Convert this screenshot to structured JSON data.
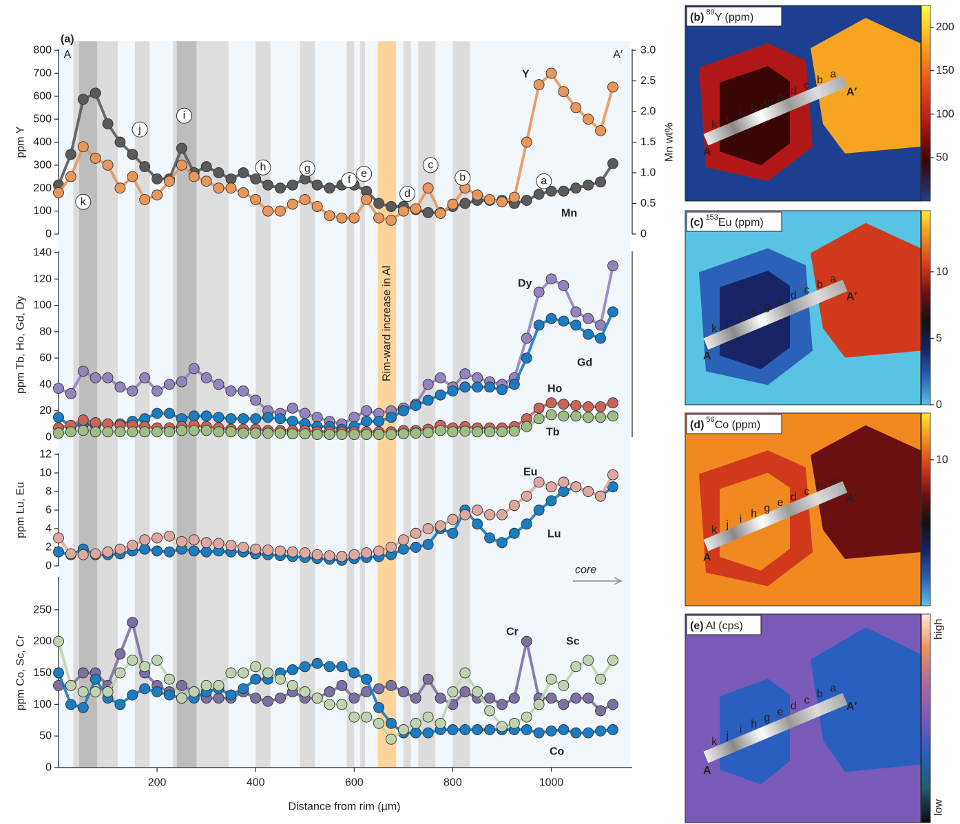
{
  "chart_data": {
    "type": "line",
    "title": "(a)",
    "xlabel": "Distance from rim (µm)",
    "xlim": [
      0,
      1160
    ],
    "xticks": [
      200,
      400,
      600,
      800,
      1000
    ],
    "core_label": "core",
    "x": [
      0,
      25,
      50,
      75,
      100,
      125,
      150,
      175,
      200,
      225,
      250,
      275,
      300,
      325,
      350,
      375,
      400,
      425,
      450,
      475,
      500,
      525,
      550,
      575,
      600,
      625,
      650,
      675,
      700,
      725,
      750,
      775,
      800,
      825,
      850,
      875,
      900,
      925,
      950,
      975,
      1000,
      1025,
      1050,
      1075,
      1100,
      1125
    ],
    "shaded_zones": [
      {
        "x0": 30,
        "x1": 120,
        "color": "#dcdcdc"
      },
      {
        "x0": 42,
        "x1": 78,
        "color": "#bdbdbd"
      },
      {
        "x0": 155,
        "x1": 185,
        "color": "#dcdcdc"
      },
      {
        "x0": 232,
        "x1": 345,
        "color": "#dedede"
      },
      {
        "x0": 240,
        "x1": 280,
        "color": "#bdbdbd"
      },
      {
        "x0": 400,
        "x1": 430,
        "color": "#dcdcdc"
      },
      {
        "x0": 490,
        "x1": 520,
        "color": "#dcdcdc"
      },
      {
        "x0": 585,
        "x1": 600,
        "color": "#dcdcdc"
      },
      {
        "x0": 612,
        "x1": 622,
        "color": "#dcdcdc"
      },
      {
        "x0": 700,
        "x1": 715,
        "color": "#dcdcdc"
      },
      {
        "x0": 730,
        "x1": 765,
        "color": "#dcdcdc"
      },
      {
        "x0": 800,
        "x1": 835,
        "color": "#dcdcdc"
      },
      {
        "x0": 648,
        "x1": 685,
        "color": "#fdd59a",
        "label": "Rim-ward increase in Al"
      }
    ],
    "subplots": [
      {
        "ylabel": "ppm Y",
        "ylim": [
          0,
          800
        ],
        "yticks": [
          0,
          100,
          200,
          300,
          400,
          500,
          600,
          700,
          800
        ],
        "y2label": "Mn wt%",
        "y2lim": [
          0,
          3
        ],
        "y2ticks": [
          0,
          0.5,
          {
            "value": 1,
            "label": "1.0"
          },
          1.5,
          {
            "value": 2,
            "label": "2.0"
          },
          2.5,
          {
            "value": 3,
            "label": "3.0"
          }
        ],
        "annotations": [
          {
            "text": "A",
            "x": 18,
            "y": 780,
            "circled": false
          },
          {
            "text": "A′",
            "x": 1135,
            "y": 780,
            "circled": false
          },
          {
            "text": "a",
            "x": 985,
            "y": 230,
            "circled": true
          },
          {
            "text": "b",
            "x": 820,
            "y": 245,
            "circled": true
          },
          {
            "text": "c",
            "x": 755,
            "y": 300,
            "circled": true
          },
          {
            "text": "d",
            "x": 708,
            "y": 175,
            "circled": true
          },
          {
            "text": "e",
            "x": 620,
            "y": 262,
            "circled": true
          },
          {
            "text": "f",
            "x": 590,
            "y": 235,
            "circled": true
          },
          {
            "text": "g",
            "x": 505,
            "y": 285,
            "circled": true
          },
          {
            "text": "h",
            "x": 415,
            "y": 290,
            "circled": true
          },
          {
            "text": "i",
            "x": 255,
            "y": 515,
            "circled": true
          },
          {
            "text": "j",
            "x": 165,
            "y": 455,
            "circled": true
          },
          {
            "text": "k",
            "x": 50,
            "y": 140,
            "circled": true
          }
        ],
        "series": [
          {
            "name": "Mn",
            "color": "#5a5a5a",
            "axis": "y2",
            "values": [
              0.8,
              1.3,
              2.2,
              2.3,
              1.8,
              1.5,
              1.3,
              1.1,
              0.9,
              0.9,
              1.4,
              1.0,
              1.1,
              1.0,
              0.9,
              1.0,
              0.9,
              0.8,
              0.75,
              0.8,
              0.9,
              0.8,
              0.75,
              0.8,
              0.8,
              0.7,
              0.5,
              0.45,
              0.45,
              0.4,
              0.35,
              0.35,
              0.45,
              0.5,
              0.55,
              0.55,
              0.55,
              0.5,
              0.55,
              0.65,
              0.7,
              0.7,
              0.75,
              0.8,
              0.85,
              1.15
            ]
          },
          {
            "name": "Y",
            "color": "#e8965a",
            "values": [
              180,
              250,
              380,
              330,
              300,
              200,
              250,
              150,
              170,
              230,
              300,
              250,
              230,
              200,
              200,
              180,
              150,
              100,
              100,
              130,
              150,
              120,
              80,
              70,
              70,
              150,
              70,
              60,
              100,
              110,
              200,
              90,
              130,
              200,
              170,
              150,
              140,
              160,
              400,
              650,
              700,
              620,
              550,
              500,
              450,
              640
            ]
          }
        ]
      },
      {
        "ylabel": "ppm Tb, Ho, Gd, Dy",
        "ylim": [
          0,
          140
        ],
        "yticks": [
          0,
          20,
          40,
          60,
          80,
          100,
          120,
          140
        ],
        "series": [
          {
            "name": "Dy",
            "color": "#9583bf",
            "values": [
              37,
              33,
              50,
              45,
              45,
              38,
              35,
              45,
              35,
              40,
              42,
              52,
              45,
              40,
              35,
              35,
              28,
              20,
              18,
              22,
              18,
              15,
              12,
              10,
              15,
              20,
              18,
              20,
              22,
              25,
              40,
              45,
              38,
              48,
              45,
              42,
              40,
              45,
              75,
              110,
              120,
              115,
              95,
              90,
              85,
              130
            ]
          },
          {
            "name": "Gd",
            "color": "#1b7cc1",
            "values": [
              15,
              8,
              10,
              9,
              10,
              10,
              12,
              14,
              18,
              18,
              14,
              16,
              16,
              15,
              14,
              14,
              14,
              15,
              14,
              12,
              10,
              8,
              8,
              6,
              8,
              12,
              12,
              15,
              20,
              24,
              28,
              32,
              35,
              38,
              38,
              38,
              36,
              40,
              60,
              85,
              90,
              88,
              85,
              78,
              75,
              95
            ]
          },
          {
            "name": "Ho",
            "color": "#c8645a",
            "values": [
              7,
              9,
              13,
              11,
              10,
              9,
              9,
              8,
              7,
              7,
              8,
              9,
              8,
              7,
              6,
              6,
              6,
              5,
              5,
              5,
              5,
              4,
              4,
              4,
              4,
              4,
              4,
              4,
              5,
              5,
              6,
              9,
              7,
              8,
              7,
              7,
              7,
              8,
              14,
              22,
              26,
              25,
              24,
              23,
              23,
              26
            ]
          },
          {
            "name": "Tb",
            "color": "#9cbd83",
            "values": [
              3,
              4,
              5,
              4,
              4,
              4,
              4,
              4,
              4,
              4,
              5,
              5,
              5,
              4,
              4,
              3,
              3,
              3,
              3,
              2.5,
              2.5,
              2,
              2,
              2,
              2,
              2,
              2,
              2,
              2.5,
              3,
              3.5,
              5,
              4,
              4.5,
              4,
              4,
              4,
              4.5,
              8,
              14,
              17,
              16,
              16,
              15,
              15,
              16
            ]
          }
        ]
      },
      {
        "ylabel": "ppm Lu, Eu",
        "ylim": [
          0,
          12
        ],
        "yticks": [
          0,
          2,
          4,
          6,
          8,
          10,
          12
        ],
        "series": [
          {
            "name": "Lu",
            "color": "#1b7cc1",
            "values": [
              1.5,
              1.2,
              1.8,
              1.2,
              1.2,
              1.3,
              1.6,
              1.8,
              1.6,
              1.5,
              1.8,
              1.6,
              1.5,
              1.6,
              1.5,
              1.5,
              1.3,
              1.2,
              1.1,
              1.0,
              0.9,
              0.8,
              0.7,
              0.6,
              0.8,
              0.9,
              1.0,
              1.2,
              1.8,
              2.0,
              2.3,
              4.0,
              3.5,
              6.0,
              4.5,
              3.0,
              2.5,
              3.5,
              4.5,
              6.0,
              7.0,
              8.0,
              8.5,
              8.0,
              7.5,
              8.5
            ]
          },
          {
            "name": "Eu",
            "color": "#dca8a0",
            "values": [
              3,
              1.3,
              1.2,
              1.3,
              1.5,
              1.8,
              2.2,
              2.8,
              3,
              3.2,
              2.6,
              2.8,
              2.5,
              2.4,
              2.2,
              2,
              1.8,
              1.7,
              1.6,
              1.5,
              1.4,
              1.2,
              1.1,
              1.0,
              1.2,
              1.4,
              1.6,
              2.0,
              2.8,
              3.5,
              4.0,
              4.3,
              5.0,
              5.5,
              6.0,
              5.5,
              5.5,
              6.5,
              7.5,
              9.0,
              8.5,
              9.0,
              8.5,
              8.0,
              7.5,
              9.8
            ]
          }
        ]
      },
      {
        "ylabel": "ppm Co, Sc, Cr",
        "ylim": [
          0,
          300
        ],
        "yticks": [
          0,
          50,
          100,
          150,
          200,
          250
        ],
        "series": [
          {
            "name": "Cr",
            "color": "#7d70a3",
            "values": [
              130,
              130,
              150,
              150,
              130,
              180,
              230,
              150,
              130,
              120,
              130,
              120,
              110,
              110,
              110,
              120,
              110,
              105,
              110,
              120,
              110,
              110,
              120,
              130,
              110,
              120,
              125,
              130,
              120,
              110,
              140,
              110,
              100,
              120,
              110,
              110,
              100,
              110,
              200,
              110,
              110,
              100,
              110,
              110,
              90,
              100
            ]
          },
          {
            "name": "Co",
            "color": "#1b7cc1",
            "values": [
              150,
              100,
              95,
              140,
              110,
              100,
              115,
              125,
              120,
              115,
              110,
              110,
              120,
              125,
              115,
              125,
              140,
              140,
              150,
              155,
              160,
              165,
              160,
              160,
              150,
              140,
              95,
              70,
              55,
              55,
              55,
              60,
              60,
              60,
              60,
              60,
              60,
              60,
              60,
              55,
              58,
              60,
              55,
              55,
              58,
              60
            ]
          },
          {
            "name": "Sc",
            "color": "#c0d3b0",
            "values": [
              200,
              130,
              120,
              120,
              120,
              150,
              170,
              160,
              170,
              140,
              110,
              120,
              130,
              130,
              150,
              150,
              160,
              150,
              140,
              130,
              120,
              110,
              100,
              100,
              80,
              80,
              70,
              45,
              60,
              70,
              80,
              70,
              120,
              150,
              120,
              90,
              65,
              70,
              80,
              100,
              140,
              130,
              160,
              170,
              140,
              170
            ]
          }
        ]
      }
    ]
  },
  "image_panels": {
    "track_letters": [
      "k",
      "j",
      "i",
      "h",
      "g",
      "e",
      "d",
      "c",
      "b",
      "a"
    ],
    "track_ends": [
      "A",
      "A′"
    ],
    "panels": [
      {
        "label": "(b)",
        "isotope": "89",
        "element": "Y (ppm)",
        "clim": [
          0,
          225
        ],
        "cticks": [
          50,
          100,
          150,
          200
        ],
        "colormap": [
          "#1d3f8f",
          "#3a0505",
          "#b01818",
          "#e8501a",
          "#f7a520",
          "#ffff40"
        ]
      },
      {
        "label": "(c)",
        "isotope": "153",
        "element": "Eu (ppm)",
        "clim": [
          0,
          14.6
        ],
        "cticks": [
          0,
          5,
          10
        ],
        "colormap": [
          "#58c3e3",
          "#2b62b8",
          "#182466",
          "#111111",
          "#6b1010",
          "#d03a1a",
          "#f08a20",
          "#ffe830"
        ]
      },
      {
        "label": "(d)",
        "isotope": "56",
        "element": "Co (ppm)",
        "clim": [
          0,
          13.2
        ],
        "cticks": [
          10
        ],
        "colormap": [
          "#58c3e3",
          "#2b62b8",
          "#182466",
          "#111111",
          "#6b1010",
          "#d03a1a",
          "#f08a20",
          "#ffe830"
        ]
      },
      {
        "label": "(e)",
        "element": "Al (cps)",
        "clabels": [
          "low",
          "high"
        ],
        "colormap": [
          "#0a0a0a",
          "#1e5f6e",
          "#2a5fbf",
          "#7a5ab8",
          "#b06aa0",
          "#e8935a",
          "#fde8d8"
        ]
      }
    ]
  }
}
